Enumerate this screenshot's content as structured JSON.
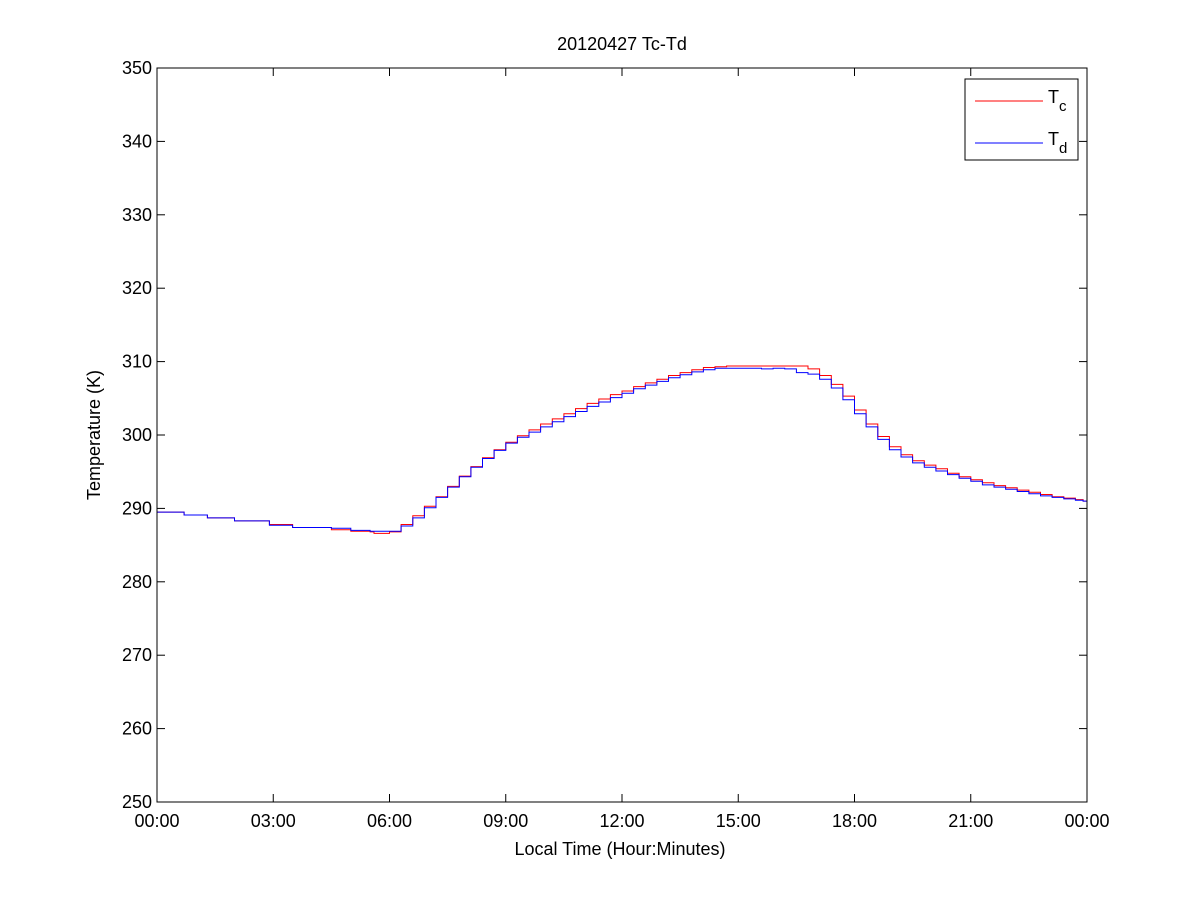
{
  "chart_data": {
    "type": "line",
    "title": "20120427 Tc-Td",
    "xlabel": "Local Time (Hour:Minutes)",
    "ylabel": "Temperature (K)",
    "xlim": [
      "00:00",
      "24:00"
    ],
    "ylim": [
      250,
      350
    ],
    "x_ticks": [
      "00:00",
      "03:00",
      "06:00",
      "09:00",
      "12:00",
      "15:00",
      "18:00",
      "21:00",
      "00:00"
    ],
    "y_ticks": [
      "250",
      "260",
      "270",
      "280",
      "290",
      "300",
      "310",
      "320",
      "330",
      "340",
      "350"
    ],
    "grid": false,
    "legend": {
      "placement": "top-right",
      "entries": [
        {
          "base": "T",
          "sub": "c"
        },
        {
          "base": "T",
          "sub": "d"
        }
      ]
    },
    "x_unit": "hours since 00:00 local time",
    "series": [
      {
        "name": "Tc",
        "color": "#ff0000",
        "x": [
          0,
          0.7,
          1.3,
          2.0,
          2.9,
          3.5,
          4.5,
          5.0,
          5.5,
          5.6,
          6.0,
          6.3,
          6.6,
          6.9,
          7.2,
          7.5,
          7.8,
          8.1,
          8.4,
          8.7,
          9.0,
          9.3,
          9.6,
          9.9,
          10.2,
          10.5,
          10.8,
          11.1,
          11.4,
          11.7,
          12.0,
          12.3,
          12.6,
          12.9,
          13.2,
          13.5,
          13.8,
          14.1,
          14.4,
          14.7,
          15.0,
          15.3,
          15.6,
          15.9,
          16.2,
          16.5,
          16.8,
          17.1,
          17.4,
          17.7,
          18.0,
          18.3,
          18.6,
          18.9,
          19.2,
          19.5,
          19.8,
          20.1,
          20.4,
          20.7,
          21.0,
          21.3,
          21.6,
          21.9,
          22.2,
          22.5,
          22.8,
          23.1,
          23.4,
          23.7,
          23.9,
          24.0
        ],
        "y": [
          289.5,
          289.1,
          288.7,
          288.3,
          287.8,
          287.4,
          287.1,
          286.9,
          286.8,
          286.6,
          286.8,
          287.8,
          289.0,
          290.3,
          291.6,
          293.0,
          294.4,
          295.7,
          296.9,
          298.0,
          299.0,
          299.9,
          300.7,
          301.5,
          302.2,
          302.9,
          303.6,
          304.3,
          304.9,
          305.5,
          306.0,
          306.6,
          307.1,
          307.6,
          308.1,
          308.5,
          308.9,
          309.2,
          309.3,
          309.4,
          309.4,
          309.4,
          309.4,
          309.4,
          309.4,
          309.4,
          309.0,
          308.1,
          306.9,
          305.3,
          303.4,
          301.5,
          299.8,
          298.4,
          297.3,
          296.5,
          295.9,
          295.4,
          294.8,
          294.3,
          293.9,
          293.5,
          293.1,
          292.8,
          292.5,
          292.2,
          291.9,
          291.6,
          291.4,
          291.2,
          291.0,
          290.4
        ]
      },
      {
        "name": "Td",
        "color": "#0000ff",
        "x": [
          0,
          0.7,
          1.3,
          2.0,
          2.9,
          3.5,
          4.5,
          5.0,
          5.5,
          5.6,
          6.0,
          6.3,
          6.6,
          6.9,
          7.2,
          7.5,
          7.8,
          8.1,
          8.4,
          8.7,
          9.0,
          9.3,
          9.6,
          9.9,
          10.2,
          10.5,
          10.8,
          11.1,
          11.4,
          11.7,
          12.0,
          12.3,
          12.6,
          12.9,
          13.2,
          13.5,
          13.8,
          14.1,
          14.4,
          14.7,
          15.0,
          15.3,
          15.6,
          15.9,
          16.2,
          16.5,
          16.8,
          17.1,
          17.4,
          17.7,
          18.0,
          18.3,
          18.6,
          18.9,
          19.2,
          19.5,
          19.8,
          20.1,
          20.4,
          20.7,
          21.0,
          21.3,
          21.6,
          21.9,
          22.2,
          22.5,
          22.8,
          23.1,
          23.4,
          23.7,
          23.9,
          24.0
        ],
        "y": [
          289.5,
          289.1,
          288.7,
          288.3,
          287.7,
          287.4,
          287.3,
          287.0,
          286.9,
          286.9,
          286.9,
          287.6,
          288.7,
          290.1,
          291.5,
          292.9,
          294.3,
          295.6,
          296.8,
          297.9,
          298.9,
          299.7,
          300.4,
          301.1,
          301.8,
          302.5,
          303.2,
          303.9,
          304.5,
          305.1,
          305.7,
          306.3,
          306.8,
          307.3,
          307.8,
          308.2,
          308.6,
          308.9,
          309.1,
          309.1,
          309.1,
          309.1,
          309.0,
          309.1,
          309.0,
          308.5,
          308.3,
          307.6,
          306.4,
          304.8,
          302.9,
          301.1,
          299.4,
          298.0,
          297.0,
          296.2,
          295.6,
          295.1,
          294.6,
          294.1,
          293.7,
          293.2,
          292.9,
          292.6,
          292.3,
          292.0,
          291.7,
          291.5,
          291.3,
          291.1,
          291.0,
          290.8
        ]
      }
    ]
  }
}
